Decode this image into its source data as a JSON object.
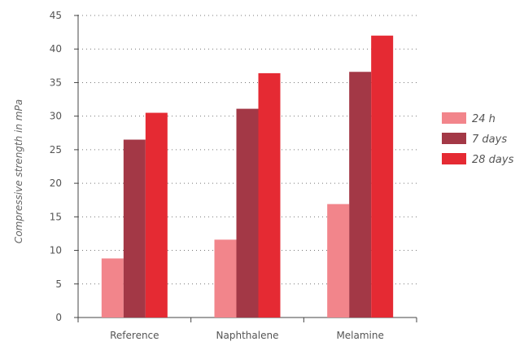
{
  "chart_data": {
    "type": "bar",
    "title": "",
    "xlabel": "",
    "ylabel": "Compressive strength in mPa",
    "categories": [
      "Reference",
      "Naphthalene",
      "Melamine"
    ],
    "ylim": [
      0,
      45
    ],
    "yticks": [
      0,
      5,
      10,
      15,
      20,
      25,
      30,
      35,
      40,
      45
    ],
    "grid": "horizontal dotted",
    "legend_position": "right",
    "series": [
      {
        "name": "24 h",
        "color": "#f2858b",
        "values": [
          8.8,
          11.6,
          16.9
        ]
      },
      {
        "name": "7 days",
        "color": "#a33846",
        "values": [
          26.5,
          31.1,
          36.6
        ]
      },
      {
        "name": "28 days",
        "color": "#e52a33",
        "values": [
          30.5,
          36.4,
          42.0
        ]
      }
    ]
  }
}
